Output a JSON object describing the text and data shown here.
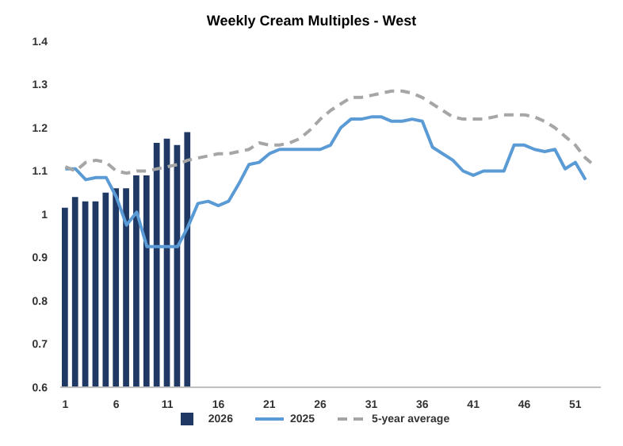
{
  "chart_data": {
    "type": "bar",
    "title": "Weekly Cream Multiples - West",
    "x": [
      1,
      2,
      3,
      4,
      5,
      6,
      7,
      8,
      9,
      10,
      11,
      12,
      13,
      14,
      15,
      16,
      17,
      18,
      19,
      20,
      21,
      22,
      23,
      24,
      25,
      26,
      27,
      28,
      29,
      30,
      31,
      32,
      33,
      34,
      35,
      36,
      37,
      38,
      39,
      40,
      41,
      42,
      43,
      44,
      45,
      46,
      47,
      48,
      49,
      50,
      51,
      52,
      53
    ],
    "xlim": [
      0.5,
      53.5
    ],
    "xticks": [
      1,
      6,
      11,
      16,
      21,
      26,
      31,
      36,
      41,
      46,
      51
    ],
    "series": [
      {
        "name": "2026",
        "color": "#1f3864",
        "values": [
          1.015,
          1.04,
          1.03,
          1.03,
          1.05,
          1.06,
          1.06,
          1.09,
          1.09,
          1.165,
          1.175,
          1.16,
          1.19,
          null,
          null,
          null,
          null,
          null,
          null,
          null,
          null,
          null,
          null,
          null,
          null,
          null,
          null,
          null,
          null,
          null,
          null,
          null,
          null,
          null,
          null,
          null,
          null,
          null,
          null,
          null,
          null,
          null,
          null,
          null,
          null,
          null,
          null,
          null,
          null,
          null,
          null,
          null,
          null
        ]
      },
      {
        "name": "2025",
        "type": "line",
        "color": "#5b9bd5",
        "line_style": "solid",
        "values": [
          1.105,
          1.105,
          1.08,
          1.085,
          1.085,
          1.04,
          0.975,
          1.005,
          0.925,
          0.925,
          0.925,
          0.925,
          0.97,
          1.025,
          1.03,
          1.02,
          1.03,
          1.07,
          1.115,
          1.12,
          1.14,
          1.15,
          1.15,
          1.15,
          1.15,
          1.15,
          1.16,
          1.2,
          1.22,
          1.22,
          1.225,
          1.225,
          1.215,
          1.215,
          1.22,
          1.215,
          1.155,
          1.14,
          1.125,
          1.1,
          1.09,
          1.1,
          1.1,
          1.1,
          1.16,
          1.16,
          1.15,
          1.145,
          1.15,
          1.105,
          1.12,
          1.08,
          null
        ]
      },
      {
        "name": "5-year average",
        "type": "line",
        "color": "#a6a6a6",
        "line_style": "dashed",
        "values": [
          1.11,
          1.1,
          1.12,
          1.125,
          1.12,
          1.1,
          1.095,
          1.1,
          1.1,
          1.105,
          1.11,
          1.115,
          1.125,
          1.13,
          1.135,
          1.14,
          1.14,
          1.145,
          1.15,
          1.165,
          1.16,
          1.16,
          1.165,
          1.175,
          1.195,
          1.22,
          1.24,
          1.255,
          1.27,
          1.27,
          1.275,
          1.28,
          1.285,
          1.285,
          1.28,
          1.27,
          1.255,
          1.24,
          1.225,
          1.22,
          1.22,
          1.22,
          1.225,
          1.23,
          1.23,
          1.23,
          1.225,
          1.215,
          1.2,
          1.18,
          1.16,
          1.13,
          1.11
        ]
      }
    ],
    "ylim": [
      0.6,
      1.4
    ],
    "yticks": [
      0.6,
      0.7,
      0.8,
      0.9,
      1,
      1.1,
      1.2,
      1.3,
      1.4
    ],
    "grid": false,
    "legend": "bottom",
    "marker": "none"
  }
}
